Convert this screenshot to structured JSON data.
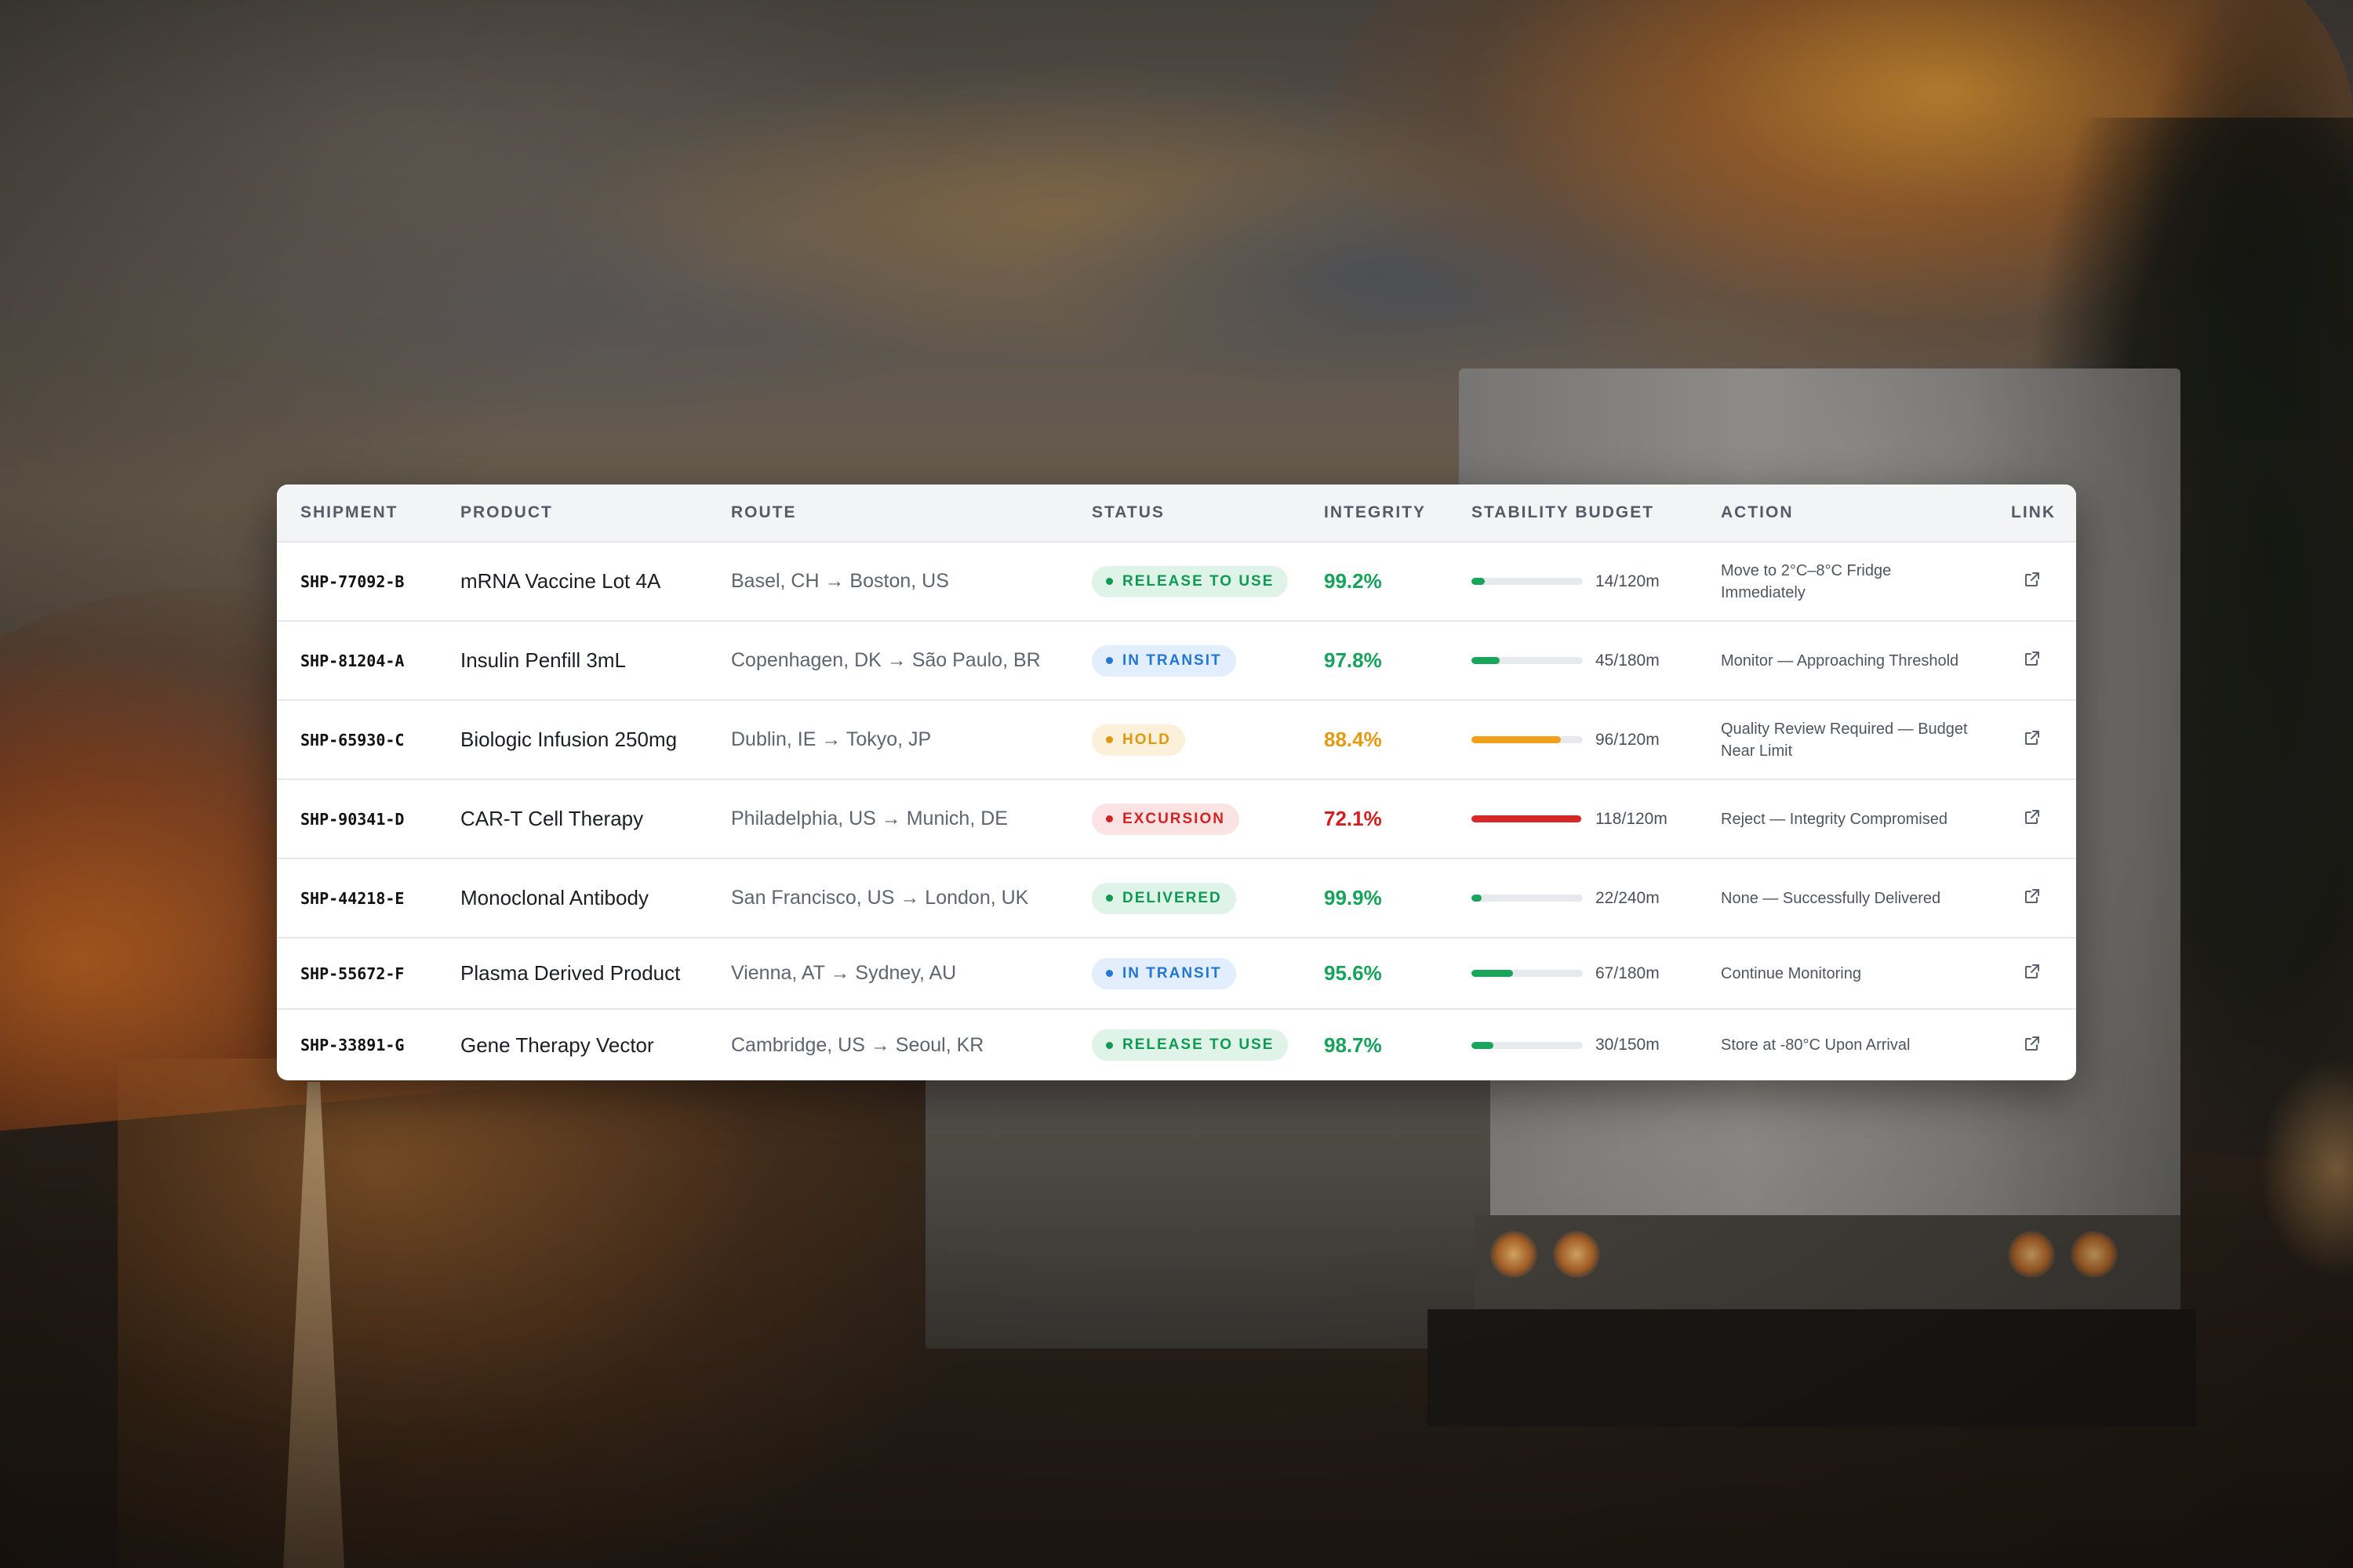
{
  "table": {
    "columns": {
      "shipment": "SHIPMENT",
      "product": "PRODUCT",
      "route": "ROUTE",
      "status": "STATUS",
      "integrity": "INTEGRITY",
      "stability_budget": "STABILITY BUDGET",
      "action": "ACTION",
      "link": "LINK"
    },
    "rows": [
      {
        "shipment": "SHP-77092-B",
        "product": "mRNA Vaccine Lot 4A",
        "route": "Basel, CH → Boston, US",
        "status": "RELEASE TO USE",
        "status_color": "#0e9a52",
        "integrity": "99.2%",
        "integrity_color": "#16a35a",
        "budget_used": 14,
        "budget_total": 120,
        "budget_text": "14/120m",
        "budget_color": "#1aa55c",
        "action": "Move to 2°C–8°C Fridge Immediately",
        "link_icon": "external-link-icon"
      },
      {
        "shipment": "SHP-81204-A",
        "product": "Insulin Penfill 3mL",
        "route": "Copenhagen, DK → São Paulo, BR",
        "status": "IN TRANSIT",
        "status_color": "#2377d0",
        "integrity": "97.8%",
        "integrity_color": "#16a35a",
        "budget_used": 45,
        "budget_total": 180,
        "budget_text": "45/180m",
        "budget_color": "#1aa55c",
        "action": "Monitor — Approaching Threshold",
        "link_icon": "external-link-icon"
      },
      {
        "shipment": "SHP-65930-C",
        "product": "Biologic Infusion 250mg",
        "route": "Dublin, IE → Tokyo, JP",
        "status": "HOLD",
        "status_color": "#e0980f",
        "integrity": "88.4%",
        "integrity_color": "#e39a10",
        "budget_used": 96,
        "budget_total": 120,
        "budget_text": "96/120m",
        "budget_color": "#f0a01b",
        "action": "Quality Review Required — Budget Near Limit",
        "link_icon": "external-link-icon"
      },
      {
        "shipment": "SHP-90341-D",
        "product": "CAR-T Cell Therapy",
        "route": "Philadelphia, US → Munich, DE",
        "status": "EXCURSION",
        "status_color": "#d32424",
        "integrity": "72.1%",
        "integrity_color": "#d11f1f",
        "budget_used": 118,
        "budget_total": 120,
        "budget_text": "118/120m",
        "budget_color": "#d62828",
        "action": "Reject — Integrity Compromised",
        "link_icon": "external-link-icon"
      },
      {
        "shipment": "SHP-44218-E",
        "product": "Monoclonal Antibody",
        "route": "San Francisco, US → London, UK",
        "status": "DELIVERED",
        "status_color": "#0e9a52",
        "integrity": "99.9%",
        "integrity_color": "#16a35a",
        "budget_used": 22,
        "budget_total": 240,
        "budget_text": "22/240m",
        "budget_color": "#1aa55c",
        "action": "None — Successfully Delivered",
        "link_icon": "external-link-icon"
      },
      {
        "shipment": "SHP-55672-F",
        "product": "Plasma Derived Product",
        "route": "Vienna, AT → Sydney, AU",
        "status": "IN TRANSIT",
        "status_color": "#2377d0",
        "integrity": "95.6%",
        "integrity_color": "#16a35a",
        "budget_used": 67,
        "budget_total": 180,
        "budget_text": "67/180m",
        "budget_color": "#1aa55c",
        "action": "Continue Monitoring",
        "link_icon": "external-link-icon"
      },
      {
        "shipment": "SHP-33891-G",
        "product": "Gene Therapy Vector",
        "route": "Cambridge, US → Seoul, KR",
        "status": "RELEASE TO USE",
        "status_color": "#0e9a52",
        "integrity": "98.7%",
        "integrity_color": "#16a35a",
        "budget_used": 30,
        "budget_total": 150,
        "budget_text": "30/150m",
        "budget_color": "#1aa55c",
        "action": "Store at -80°C Upon Arrival",
        "link_icon": "external-link-icon"
      }
    ]
  }
}
